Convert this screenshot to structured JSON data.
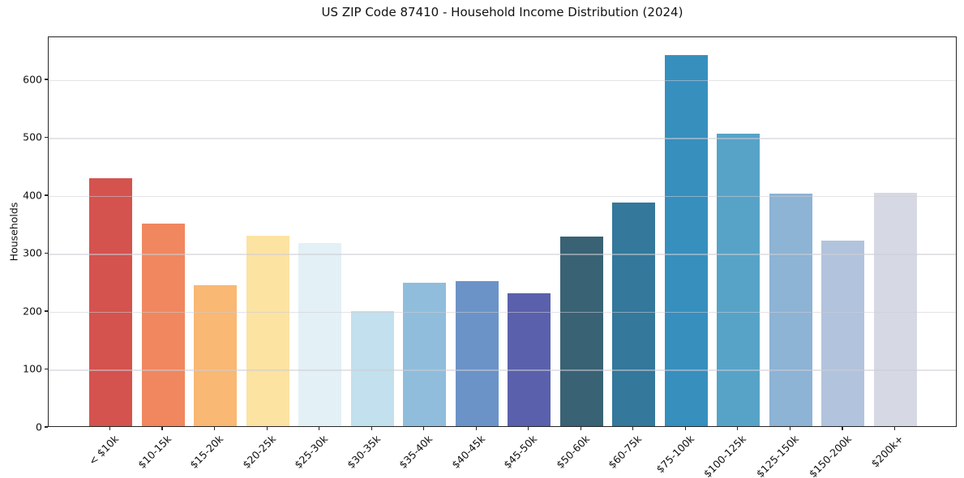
{
  "figure": {
    "title": "US ZIP Code 87410 - Household Income Distribution (2024)"
  },
  "chart_data": {
    "type": "bar",
    "title": "US ZIP Code 87410 - Household Income Distribution (2024)",
    "xlabel": "",
    "ylabel": "Households",
    "categories": [
      "< $10k",
      "$10-15k",
      "$15-20k",
      "$20-25k",
      "$25-30k",
      "$30-35k",
      "$35-40k",
      "$40-45k",
      "$45-50k",
      "$50-60k",
      "$60-75k",
      "$75-100k",
      "$100-125k",
      "$125-150k",
      "$150-200k",
      "$200k+"
    ],
    "values": [
      428,
      349,
      243,
      328,
      316,
      198,
      247,
      250,
      229,
      327,
      386,
      641,
      505,
      401,
      320,
      403
    ],
    "bar_colors": [
      "#d4534e",
      "#f0875f",
      "#f9b873",
      "#fce3a2",
      "#e3f0f5",
      "#c2e0ed",
      "#90bddc",
      "#6b93c7",
      "#5a60ab",
      "#396275",
      "#34789c",
      "#378fbe",
      "#57a3c8",
      "#8db3d5",
      "#b2c3dd",
      "#d6d8e4"
    ],
    "y_ticks": [
      0,
      100,
      200,
      300,
      400,
      500,
      600
    ],
    "ylim": [
      0,
      674
    ],
    "grid": "horizontal",
    "legend": "none",
    "background": "#ffffff",
    "gridline_color": "#e6e6e9",
    "axis_color": "#262626"
  }
}
